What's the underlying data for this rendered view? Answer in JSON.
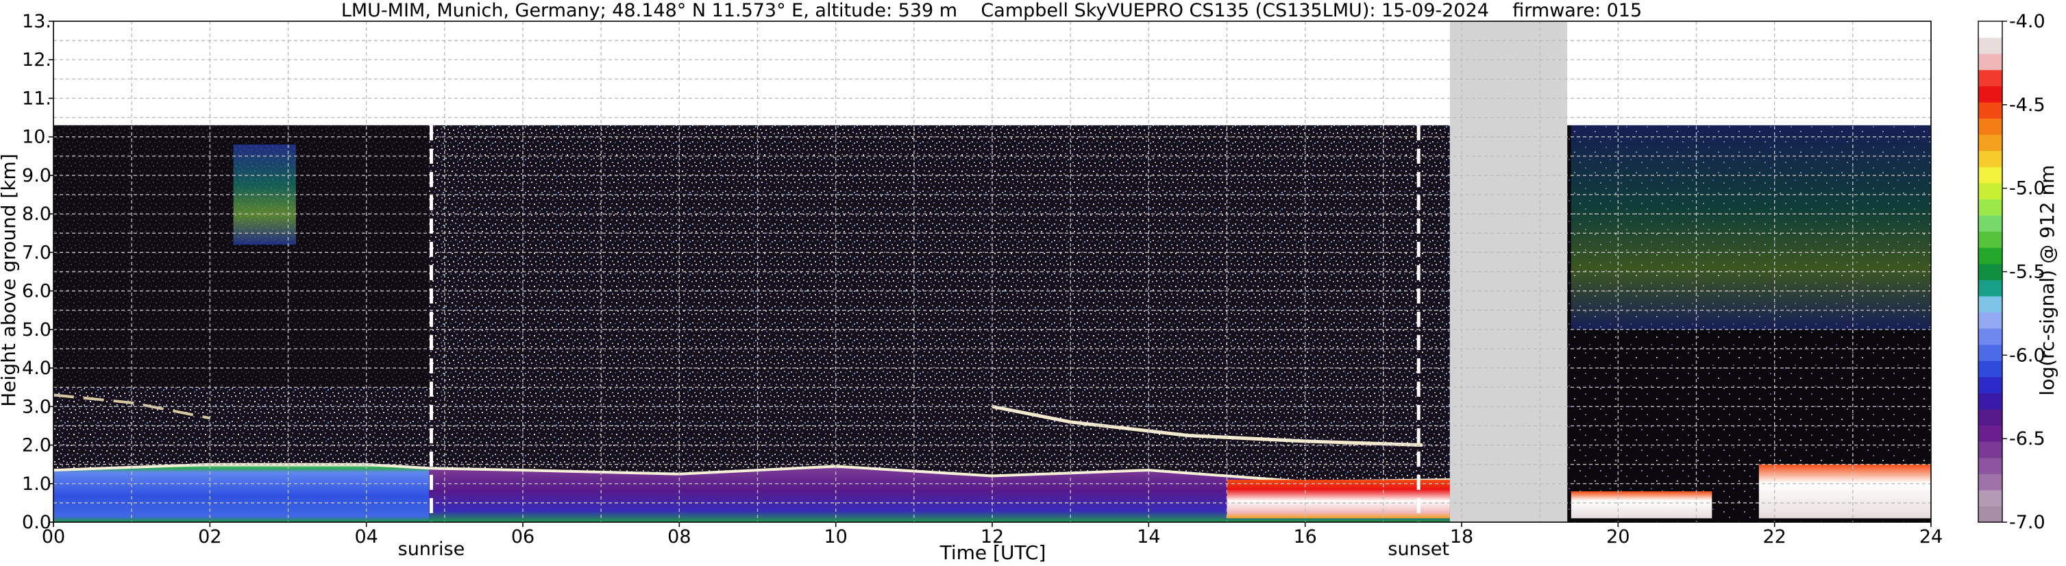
{
  "chart_data": {
    "type": "heatmap",
    "title": "LMU-MIM, Munich, Germany; 48.148° N 11.573° E, altitude: 539 m    Campbell SkyVUEPRO CS135 (CS135LMU): 15-09-2024    firmware: 015",
    "xlabel": "Time [UTC]",
    "ylabel": "Height above ground [km]",
    "xlim": [
      0,
      24
    ],
    "ylim": [
      0,
      13
    ],
    "x_ticks": [
      "00",
      "02",
      "04",
      "06",
      "08",
      "10",
      "12",
      "14",
      "16",
      "18",
      "20",
      "22",
      "24"
    ],
    "y_ticks": [
      "0.0",
      "1.0",
      "2.0",
      "3.0",
      "4.0",
      "5.0",
      "6.0",
      "7.0",
      "8.0",
      "9.0",
      "10.",
      "11.",
      "12.",
      "13."
    ],
    "grid": true,
    "data_top_km": 10.3,
    "missing_data": [
      {
        "start": 17.85,
        "end": 19.35
      }
    ],
    "annotations": [
      {
        "label": "sunrise",
        "time": 4.83
      },
      {
        "label": "sunset",
        "time": 17.45
      }
    ],
    "colorbar": {
      "label": "log(rc-signal) @ 912 nm",
      "range": [
        -7.0,
        -4.0
      ],
      "ticks": [
        "-4.0",
        "-4.5",
        "-5.0",
        "-5.5",
        "-6.0",
        "-6.5",
        "-7.0"
      ],
      "colors": [
        "#a78fa8",
        "#b39bb5",
        "#9e72a6",
        "#8d55a0",
        "#7a3a95",
        "#6a1f8e",
        "#571a8a",
        "#3a1aa8",
        "#2c2ac8",
        "#2f4bdb",
        "#4c6be6",
        "#6f88ef",
        "#93a9f3",
        "#7ec4e8",
        "#19a08a",
        "#0f8f3f",
        "#23a82b",
        "#55c43c",
        "#76d96a",
        "#9be84a",
        "#c9ef35",
        "#f2f23c",
        "#f5cc2c",
        "#f5a01c",
        "#f47c14",
        "#f24a10",
        "#ea1414",
        "#f23a2e",
        "#f0b7b9",
        "#e8dcdc",
        "#ffffff"
      ]
    },
    "features": {
      "boundary_layer_top_km": [
        {
          "t": 0,
          "h": 1.35
        },
        {
          "t": 2,
          "h": 1.5
        },
        {
          "t": 4,
          "h": 1.5
        },
        {
          "t": 4.8,
          "h": 1.4
        },
        {
          "t": 6,
          "h": 1.35
        },
        {
          "t": 8,
          "h": 1.25
        },
        {
          "t": 10,
          "h": 1.45
        },
        {
          "t": 12,
          "h": 1.2
        },
        {
          "t": 14,
          "h": 1.35
        },
        {
          "t": 16,
          "h": 1.05
        },
        {
          "t": 17.85,
          "h": 1.1
        }
      ],
      "elevated_layer_km": [
        {
          "t": 0,
          "h": 3.3
        },
        {
          "t": 1,
          "h": 3.1
        },
        {
          "t": 2,
          "h": 2.7
        },
        {
          "t": 12,
          "h": 3.0
        },
        {
          "t": 13,
          "h": 2.6
        },
        {
          "t": 14.5,
          "h": 2.25
        },
        {
          "t": 16,
          "h": 2.1
        },
        {
          "t": 17.5,
          "h": 2.0
        }
      ],
      "cirrus": [
        {
          "t_start": 2.3,
          "t_end": 3.1,
          "h_low": 7.2,
          "h_high": 9.8
        },
        {
          "t_start": 19.4,
          "t_end": 24,
          "h_low": 5.0,
          "h_high": 10.3
        }
      ],
      "fog_low_cloud": [
        {
          "t_start": 15.0,
          "t_end": 17.85,
          "h_low": 0.1,
          "h_high": 1.1
        },
        {
          "t_start": 19.4,
          "t_end": 21.2,
          "h_low": 0.1,
          "h_high": 0.8
        },
        {
          "t_start": 21.8,
          "t_end": 24,
          "h_low": 0.1,
          "h_high": 1.5
        }
      ]
    }
  }
}
